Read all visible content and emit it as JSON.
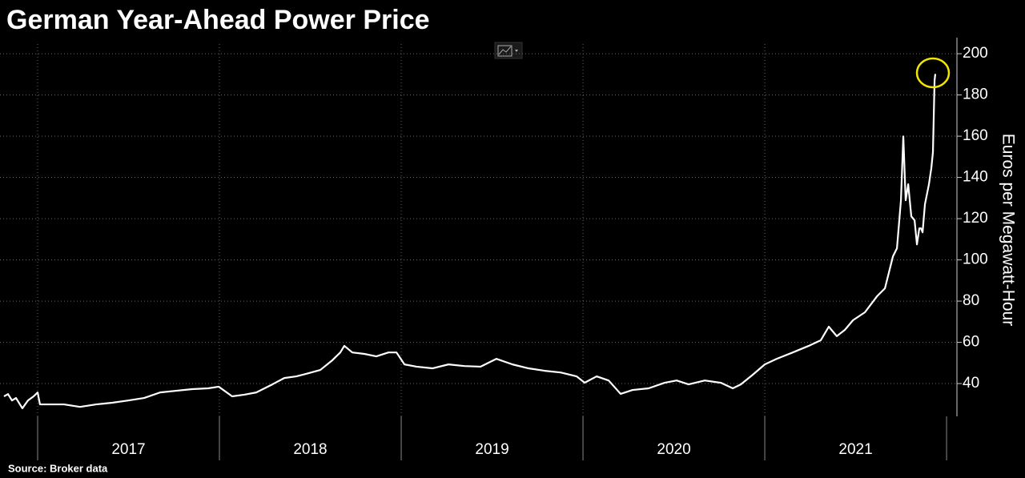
{
  "chart_data": {
    "type": "line",
    "title": "German Year-Ahead Power Price",
    "y_label": "Euros per Megawatt-Hour",
    "source": "Source: Broker data",
    "color": "#ffffff",
    "x": [
      2016.815,
      2016.837,
      2016.859,
      2016.881,
      2016.916,
      2016.947,
      2016.978,
      2017.0,
      2017.013,
      2017.057,
      2017.145,
      2017.233,
      2017.322,
      2017.41,
      2017.498,
      2017.586,
      2017.674,
      2017.762,
      2017.85,
      2017.938,
      2017.996,
      2018.07,
      2018.137,
      2018.203,
      2018.291,
      2018.357,
      2018.423,
      2018.489,
      2018.555,
      2018.621,
      2018.665,
      2018.687,
      2018.731,
      2018.797,
      2018.863,
      2018.93,
      2018.974,
      2019.018,
      2019.084,
      2019.172,
      2019.26,
      2019.348,
      2019.436,
      2019.524,
      2019.612,
      2019.7,
      2019.789,
      2019.877,
      2019.965,
      2020.009,
      2020.075,
      2020.141,
      2020.207,
      2020.273,
      2020.361,
      2020.449,
      2020.515,
      2020.581,
      2020.67,
      2020.758,
      2020.824,
      2020.868,
      2020.934,
      2021.0,
      2021.066,
      2021.154,
      2021.242,
      2021.308,
      2021.352,
      2021.396,
      2021.441,
      2021.485,
      2021.551,
      2021.617,
      2021.661,
      2021.705,
      2021.727,
      2021.749,
      2021.762,
      2021.775,
      2021.789,
      2021.806,
      2021.824,
      2021.837,
      2021.85,
      2021.859,
      2021.868,
      2021.881,
      2021.903,
      2021.916,
      2021.925,
      2021.934,
      2021.938
    ],
    "values": [
      33.8,
      34.9,
      31.8,
      33.0,
      28.0,
      31.8,
      33.8,
      35.7,
      29.9,
      29.9,
      29.9,
      28.7,
      29.9,
      30.7,
      31.8,
      33.0,
      35.7,
      36.5,
      37.3,
      37.7,
      38.5,
      33.8,
      34.6,
      35.7,
      39.6,
      42.7,
      43.5,
      45.0,
      46.6,
      51.3,
      55.1,
      58.3,
      55.1,
      54.4,
      53.2,
      55.1,
      55.1,
      49.3,
      48.2,
      47.4,
      49.3,
      48.5,
      48.2,
      52.0,
      49.3,
      47.4,
      46.2,
      45.4,
      43.5,
      40.4,
      43.5,
      41.5,
      35.0,
      36.9,
      37.7,
      40.4,
      41.5,
      39.6,
      41.5,
      40.4,
      37.7,
      39.6,
      44.3,
      49.3,
      52.0,
      55.1,
      58.3,
      61.0,
      67.6,
      63.0,
      66.1,
      70.7,
      74.6,
      82.3,
      86.2,
      101.7,
      105.6,
      128.9,
      159.9,
      128.9,
      136.7,
      121.1,
      119.2,
      107.5,
      115.3,
      115.3,
      113.4,
      127.0,
      136.7,
      144.4,
      152.2,
      187.1,
      190.2
    ],
    "xlim": [
      2016.793,
      2022.057
    ],
    "xticks": [
      2017,
      2018,
      2019,
      2020,
      2021
    ],
    "ylim": [
      24.1,
      204.7
    ],
    "yticks": [
      40,
      60,
      80,
      100,
      120,
      140,
      160,
      180,
      200
    ],
    "grid": true
  }
}
